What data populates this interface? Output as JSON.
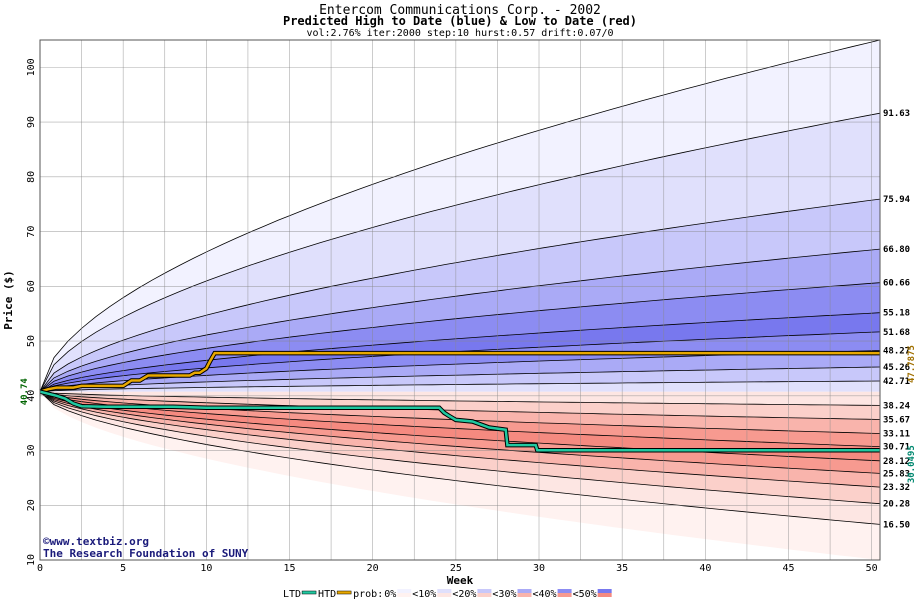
{
  "chart_data": {
    "type": "area",
    "title": "Entercom Communications Corp. - 2002",
    "subtitle": "Predicted High to Date (blue) &  Low to Date (red)",
    "params": "vol:2.76% iter:2000 step:10 hurst:0.57 drift:0.07/0",
    "xlabel": "Week",
    "ylabel": "Price ($)",
    "xlim": [
      0,
      50.5
    ],
    "ylim": [
      10,
      105
    ],
    "xticks": [
      0,
      5,
      10,
      15,
      20,
      25,
      30,
      35,
      40,
      45,
      50
    ],
    "yticks": [
      10,
      20,
      30,
      40,
      50,
      60,
      70,
      80,
      90,
      100
    ],
    "grid": true,
    "start_price": 40.74,
    "start_label": "40.74",
    "high_bands": [
      {
        "end": 105.0,
        "prob": "0%",
        "color": "#f2f2ff"
      },
      {
        "end": 91.63,
        "prob": "10%",
        "color": "#e0e0fc"
      },
      {
        "end": 75.94,
        "prob": "20%",
        "color": "#c8c8fa"
      },
      {
        "end": 66.8,
        "prob": "30%",
        "color": "#aaaaf6"
      },
      {
        "end": 60.66,
        "prob": "40%",
        "color": "#8c8cf2"
      },
      {
        "end": 55.18,
        "prob": "50%",
        "color": "#7878ee"
      },
      {
        "end": 51.68,
        "prob": "40%",
        "color": "#8c8cf2"
      },
      {
        "end": 48.27,
        "prob": "30%",
        "color": "#aaaaf6"
      },
      {
        "end": 45.26,
        "prob": "20%",
        "color": "#c8c8fa"
      },
      {
        "end": 42.71,
        "prob": "10%",
        "color": "#e0e0fc"
      }
    ],
    "low_bands": [
      {
        "end": 38.24,
        "prob": "10%",
        "color": "#fde6e3"
      },
      {
        "end": 35.67,
        "prob": "20%",
        "color": "#fbd0ca"
      },
      {
        "end": 33.11,
        "prob": "30%",
        "color": "#f9b4ac"
      },
      {
        "end": 30.71,
        "prob": "40%",
        "color": "#f79a90"
      },
      {
        "end": 28.12,
        "prob": "50%",
        "color": "#f58a80"
      },
      {
        "end": 25.83,
        "prob": "40%",
        "color": "#f79a90"
      },
      {
        "end": 23.32,
        "prob": "30%",
        "color": "#f9b4ac"
      },
      {
        "end": 20.28,
        "prob": "20%",
        "color": "#fbd0ca"
      },
      {
        "end": 16.5,
        "prob": "10%",
        "color": "#fde6e3"
      },
      {
        "end": 10.0,
        "prob": "0%",
        "color": "#fff2f0"
      }
    ],
    "right_labels": [
      "91.63",
      "75.94",
      "66.80",
      "60.66",
      "55.18",
      "51.68",
      "48.27",
      "45.26",
      "42.71",
      "38.24",
      "35.67",
      "33.11",
      "30.71",
      "28.12",
      "25.83",
      "23.32",
      "20.28",
      "16.50"
    ],
    "series": [
      {
        "name": "HTD",
        "color": "#e8a800",
        "last_label": "47.7875",
        "points": [
          [
            0,
            40.74
          ],
          [
            0.5,
            41.2
          ],
          [
            1,
            41.5
          ],
          [
            2,
            41.5
          ],
          [
            2.5,
            41.8
          ],
          [
            5,
            41.8
          ],
          [
            5.5,
            42.8
          ],
          [
            6,
            42.8
          ],
          [
            6.5,
            43.7
          ],
          [
            9,
            43.7
          ],
          [
            9.3,
            44.2
          ],
          [
            9.6,
            44.2
          ],
          [
            10,
            45.0
          ],
          [
            10.2,
            46.2
          ],
          [
            10.5,
            47.8
          ],
          [
            50.5,
            47.8
          ]
        ]
      },
      {
        "name": "LTD",
        "color": "#20c8a0",
        "last_label": "30.0495",
        "points": [
          [
            0,
            40.74
          ],
          [
            1,
            40.0
          ],
          [
            1.5,
            39.5
          ],
          [
            2,
            38.6
          ],
          [
            2.5,
            38.1
          ],
          [
            4,
            38.0
          ],
          [
            8,
            38.0
          ],
          [
            10,
            37.8
          ],
          [
            24,
            37.8
          ],
          [
            24.3,
            36.9
          ],
          [
            24.6,
            36.3
          ],
          [
            25,
            35.6
          ],
          [
            26,
            35.3
          ],
          [
            27,
            34.2
          ],
          [
            28,
            33.8
          ],
          [
            28.1,
            31.0
          ],
          [
            29.8,
            31.0
          ],
          [
            29.9,
            30.05
          ],
          [
            50.5,
            30.05
          ]
        ]
      }
    ],
    "legend": {
      "placement": "bottom",
      "ltd": "LTD",
      "htd": "HTD",
      "prob_prefix": "prob:",
      "items": [
        {
          "label": "0%",
          "blue": "#f2f2ff",
          "red": "#fff2f0"
        },
        {
          "label": "<10%",
          "blue": "#e0e0fc",
          "red": "#fde6e3"
        },
        {
          "label": "<20%",
          "blue": "#c8c8fa",
          "red": "#fbd0ca"
        },
        {
          "label": "<30%",
          "blue": "#aaaaf6",
          "red": "#f9b4ac"
        },
        {
          "label": "<40%",
          "blue": "#8c8cf2",
          "red": "#f79a90"
        },
        {
          "label": "<50%",
          "blue": "#7878ee",
          "red": "#f58a80"
        }
      ]
    },
    "credits": [
      "©www.textbiz.org",
      "The Research Foundation of SUNY"
    ]
  }
}
